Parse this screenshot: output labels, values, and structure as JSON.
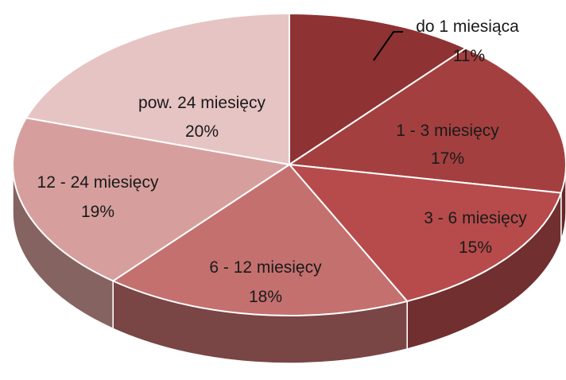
{
  "chart_data": {
    "type": "pie",
    "title": "",
    "three_d": true,
    "legend": "none",
    "labels_on_slices": true,
    "slices": [
      {
        "label": "do 1 miesiąca",
        "pct_label": "11%",
        "value": 11,
        "color": "#8e3234"
      },
      {
        "label": "1 - 3 miesięcy",
        "pct_label": "17%",
        "value": 17,
        "color": "#a3403f"
      },
      {
        "label": "3 - 6 miesięcy",
        "pct_label": "15%",
        "value": 15,
        "color": "#b74b4b"
      },
      {
        "label": "6 - 12 miesięcy",
        "pct_label": "18%",
        "value": 18,
        "color": "#c4706f"
      },
      {
        "label": "12 - 24 miesięcy",
        "pct_label": "19%",
        "value": 19,
        "color": "#d69f9d"
      },
      {
        "label": "pow. 24 miesięcy",
        "pct_label": "20%",
        "value": 20,
        "color": "#e6c4c3"
      }
    ]
  }
}
